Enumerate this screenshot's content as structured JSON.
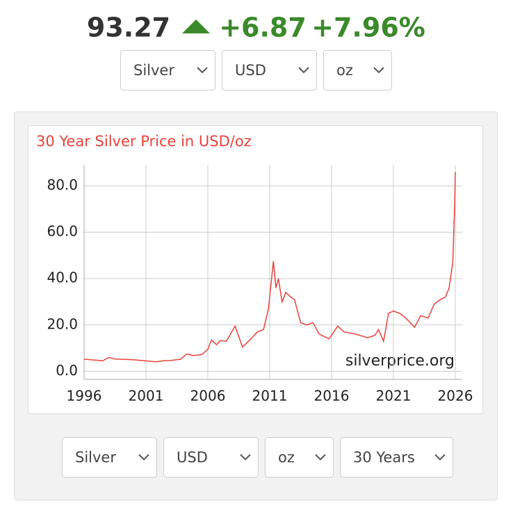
{
  "header": {
    "price": "93.27",
    "change": "+6.87",
    "change_percent": "+7.96%"
  },
  "top_selects": [
    "Silver",
    "USD",
    "oz"
  ],
  "bottom_selects": [
    "Silver",
    "USD",
    "oz",
    "30 Years"
  ],
  "chart_data": {
    "type": "line",
    "title": "30 Year Silver Price in USD/oz",
    "watermark": "silverprice.org",
    "color": "#e8423a",
    "grid": true,
    "x": [
      1996.0,
      1996.5,
      1997.0,
      1997.5,
      1998.0,
      1998.5,
      1999.0,
      2000.0,
      2001.0,
      2001.8,
      2002.5,
      2003.0,
      2003.8,
      2004.3,
      2004.8,
      2005.5,
      2006.0,
      2006.3,
      2006.7,
      2007.0,
      2007.5,
      2008.2,
      2008.8,
      2009.5,
      2010.0,
      2010.5,
      2010.9,
      2011.3,
      2011.5,
      2011.7,
      2012.0,
      2012.3,
      2012.7,
      2013.0,
      2013.5,
      2014.0,
      2014.5,
      2015.0,
      2015.8,
      2016.5,
      2017.0,
      2018.0,
      2018.9,
      2019.5,
      2019.8,
      2020.2,
      2020.6,
      2021.0,
      2021.5,
      2022.0,
      2022.7,
      2023.2,
      2023.8,
      2024.3,
      2024.8,
      2025.2,
      2025.5,
      2025.8,
      2025.95,
      2026.0
    ],
    "values": [
      5.2,
      5.0,
      4.8,
      4.5,
      6.0,
      5.3,
      5.2,
      5.0,
      4.5,
      4.1,
      4.6,
      4.7,
      5.2,
      7.5,
      6.8,
      7.2,
      9.5,
      13.5,
      11.5,
      13.2,
      13.0,
      19.5,
      10.5,
      14,
      17,
      18,
      27,
      47.5,
      36,
      40,
      30,
      34,
      32,
      31,
      21,
      20,
      21,
      16,
      14,
      19.5,
      17,
      16,
      14.5,
      15.5,
      18,
      13,
      25,
      26,
      25,
      23,
      19,
      24,
      23,
      29,
      31,
      32,
      36,
      47,
      72,
      86
    ],
    "xlim": [
      1996,
      2026
    ],
    "xticks": [
      1996,
      2001,
      2006,
      2011,
      2016,
      2021,
      2026
    ],
    "ylim": [
      -3.5,
      89
    ],
    "yticks": [
      {
        "value": 0,
        "label": "0.0"
      },
      {
        "value": 20,
        "label": "20.0"
      },
      {
        "value": 40,
        "label": "40.0"
      },
      {
        "value": 60,
        "label": "60.0"
      },
      {
        "value": 80,
        "label": "80.0"
      }
    ]
  }
}
